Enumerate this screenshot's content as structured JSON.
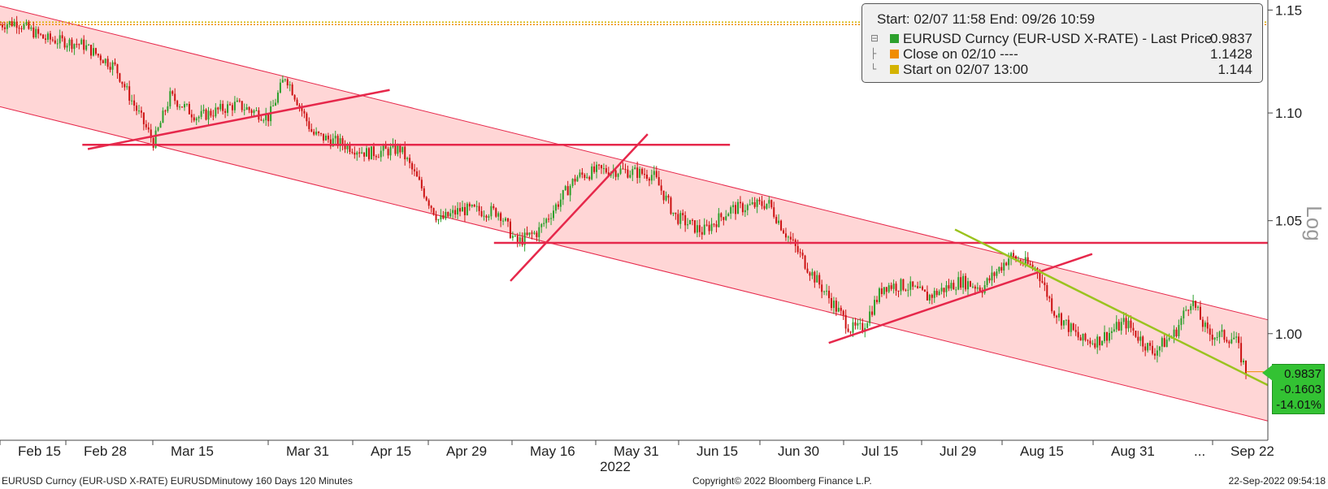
{
  "chart_data": {
    "type": "candlestick",
    "title": "",
    "xlabel": "",
    "ylabel": "Log",
    "y_scale": "log",
    "ylim": [
      0.955,
      1.155
    ],
    "y_ticks": [
      "1.15",
      "1.10",
      "1.05",
      "1.00"
    ],
    "x_ticks": [
      "Feb 15",
      "Feb 28",
      "Mar 15",
      "Mar 31",
      "Apr 15",
      "Apr 29",
      "May 16",
      "May 31",
      "Jun 15",
      "Jun 30",
      "Jul 15",
      "Jul 29",
      "Aug 15",
      "Aug 31",
      "...",
      "Sep 22"
    ],
    "year_label": "2022",
    "series": [
      {
        "name": "EURUSD Curncy (EUR-USD X-RATE) - Last Price",
        "color": "#2ca02c",
        "down_color": "#cc1111",
        "x": [
          "Feb 07",
          "Feb 10",
          "Feb 15",
          "Feb 22",
          "Feb 28",
          "Mar 02",
          "Mar 07",
          "Mar 10",
          "Mar 15",
          "Mar 22",
          "Mar 28",
          "Mar 31",
          "Apr 05",
          "Apr 13",
          "Apr 15",
          "Apr 21",
          "Apr 28",
          "May 02",
          "May 09",
          "May 12",
          "May 16",
          "May 23",
          "May 27",
          "May 31",
          "Jun 06",
          "Jun 10",
          "Jun 15",
          "Jun 20",
          "Jun 27",
          "Jun 30",
          "Jul 05",
          "Jul 12",
          "Jul 14",
          "Jul 18",
          "Jul 22",
          "Jul 26",
          "Aug 01",
          "Aug 05",
          "Aug 10",
          "Aug 15",
          "Aug 18",
          "Aug 23",
          "Aug 26",
          "Aug 31",
          "Sep 05",
          "Sep 09",
          "Sep 12",
          "Sep 15",
          "Sep 20",
          "Sep 22"
        ],
        "y": [
          1.1428,
          1.144,
          1.136,
          1.133,
          1.122,
          1.111,
          1.086,
          1.108,
          1.098,
          1.104,
          1.098,
          1.118,
          1.09,
          1.083,
          1.081,
          1.083,
          1.05,
          1.055,
          1.054,
          1.04,
          1.045,
          1.07,
          1.073,
          1.073,
          1.071,
          1.052,
          1.045,
          1.055,
          1.058,
          1.045,
          1.026,
          1.002,
          1.002,
          1.021,
          1.021,
          1.016,
          1.023,
          1.02,
          1.034,
          1.028,
          1.01,
          0.997,
          0.997,
          1.005,
          0.992,
          1.0,
          1.015,
          1.0,
          0.998,
          0.9837
        ]
      },
      {
        "name": "Close on 02/10",
        "color": "#f08c00",
        "values": [
          1.1428
        ]
      },
      {
        "name": "Start on 02/07 13:00",
        "color": "#d4b300",
        "values": [
          1.144
        ]
      }
    ],
    "channel": {
      "color": "#ffd6d6",
      "upper": [
        [
          "Feb 07",
          1.152
        ],
        [
          "Sep 26",
          1.006
        ]
      ],
      "lower": [
        [
          "Feb 07",
          1.103
        ],
        [
          "Sep 26",
          0.963
        ]
      ]
    },
    "trendlines": [
      {
        "color": "#e6284b",
        "points": [
          [
            "Feb 23",
            1.083
          ],
          [
            "Apr 19",
            1.111
          ]
        ]
      },
      {
        "color": "#e6284b",
        "points": [
          [
            "Feb 22",
            1.085
          ],
          [
            "Jun 20",
            1.085
          ]
        ]
      },
      {
        "color": "#e6284b",
        "points": [
          [
            "May 11",
            1.023
          ],
          [
            "Jun 05",
            1.09
          ]
        ]
      },
      {
        "color": "#e6284b",
        "points": [
          [
            "May 08",
            1.04
          ],
          [
            "Sep 26",
            1.04
          ]
        ]
      },
      {
        "color": "#e6284b",
        "points": [
          [
            "Jul 08",
            0.996
          ],
          [
            "Aug 25",
            1.035
          ]
        ]
      },
      {
        "color": "#9bc31f",
        "points": [
          [
            "Jul 31",
            1.046
          ],
          [
            "Sep 26",
            0.978
          ]
        ]
      }
    ]
  },
  "legend": {
    "header": "Start: 02/07 11:58 End: 09/26 10:59",
    "rows": [
      {
        "label": "EURUSD Curncy (EUR-USD X-RATE) - Last Price",
        "value": "0.9837",
        "color": "#2ca02c"
      },
      {
        "label": "Close on 02/10 ----",
        "value": "1.1428",
        "color": "#f08c00"
      },
      {
        "label": "Start on 02/07 13:00",
        "value": "1.144",
        "color": "#d4b300"
      }
    ]
  },
  "price_box": {
    "last": "0.9837",
    "change": "-0.1603",
    "pct": "-14.01%"
  },
  "footer": {
    "left": "EURUSD Curncy (EUR-USD X-RATE) EURUSDMinutowy 160 Days 120 Minutes",
    "center": "Copyright© 2022 Bloomberg Finance L.P.",
    "right": "22-Sep-2022 09:54:18"
  }
}
